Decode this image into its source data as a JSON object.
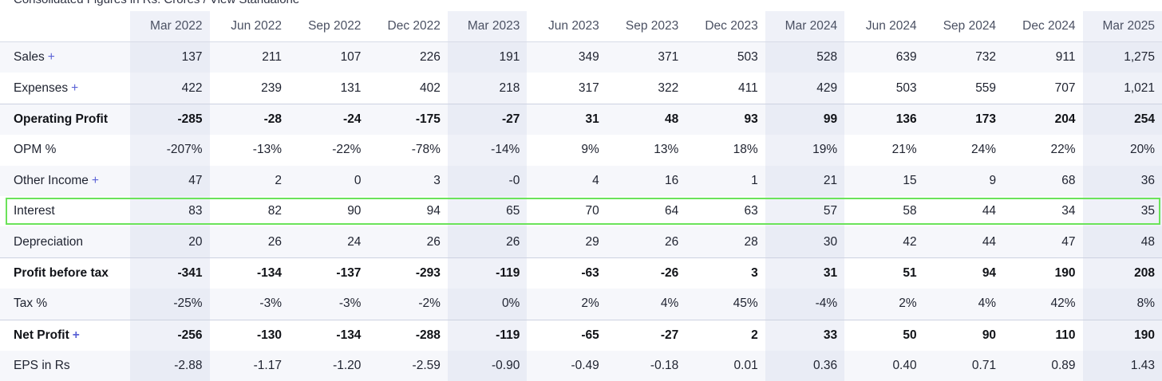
{
  "header_fragment": "Consolidated Figures in Rs. Crores / View Standalone",
  "periods": [
    "Mar 2022",
    "Jun 2022",
    "Sep 2022",
    "Dec 2022",
    "Mar 2023",
    "Jun 2023",
    "Sep 2023",
    "Dec 2023",
    "Mar 2024",
    "Jun 2024",
    "Sep 2024",
    "Dec 2024",
    "Mar 2025"
  ],
  "highlight_columns": [
    0,
    4,
    8,
    12
  ],
  "rows": [
    {
      "label": "Sales",
      "plus": true,
      "strong": false,
      "alt": true,
      "values": [
        "137",
        "211",
        "107",
        "226",
        "191",
        "349",
        "371",
        "503",
        "528",
        "639",
        "732",
        "911",
        "1,275"
      ]
    },
    {
      "label": "Expenses",
      "plus": true,
      "strong": false,
      "alt": false,
      "values": [
        "422",
        "239",
        "131",
        "402",
        "218",
        "317",
        "322",
        "411",
        "429",
        "503",
        "559",
        "707",
        "1,021"
      ]
    },
    {
      "label": "Operating Profit",
      "plus": false,
      "strong": true,
      "alt": true,
      "values": [
        "-285",
        "-28",
        "-24",
        "-175",
        "-27",
        "31",
        "48",
        "93",
        "99",
        "136",
        "173",
        "204",
        "254"
      ]
    },
    {
      "label": "OPM %",
      "plus": false,
      "strong": false,
      "alt": false,
      "values": [
        "-207%",
        "-13%",
        "-22%",
        "-78%",
        "-14%",
        "9%",
        "13%",
        "18%",
        "19%",
        "21%",
        "24%",
        "22%",
        "20%"
      ]
    },
    {
      "label": "Other Income",
      "plus": true,
      "strong": false,
      "alt": true,
      "values": [
        "47",
        "2",
        "0",
        "3",
        "-0",
        "4",
        "16",
        "1",
        "21",
        "15",
        "9",
        "68",
        "36"
      ]
    },
    {
      "label": "Interest",
      "plus": false,
      "strong": false,
      "alt": false,
      "selected": true,
      "values": [
        "83",
        "82",
        "90",
        "94",
        "65",
        "70",
        "64",
        "63",
        "57",
        "58",
        "44",
        "34",
        "35"
      ]
    },
    {
      "label": "Depreciation",
      "plus": false,
      "strong": false,
      "alt": true,
      "values": [
        "20",
        "26",
        "24",
        "26",
        "26",
        "29",
        "26",
        "28",
        "30",
        "42",
        "44",
        "47",
        "48"
      ]
    },
    {
      "label": "Profit before tax",
      "plus": false,
      "strong": true,
      "alt": false,
      "values": [
        "-341",
        "-134",
        "-137",
        "-293",
        "-119",
        "-63",
        "-26",
        "3",
        "31",
        "51",
        "94",
        "190",
        "208"
      ]
    },
    {
      "label": "Tax %",
      "plus": false,
      "strong": false,
      "alt": true,
      "values": [
        "-25%",
        "-3%",
        "-3%",
        "-2%",
        "0%",
        "2%",
        "4%",
        "45%",
        "-4%",
        "2%",
        "4%",
        "42%",
        "8%"
      ]
    },
    {
      "label": "Net Profit",
      "plus": true,
      "strong": true,
      "alt": false,
      "values": [
        "-256",
        "-130",
        "-134",
        "-288",
        "-119",
        "-65",
        "-27",
        "2",
        "33",
        "50",
        "90",
        "110",
        "190"
      ]
    },
    {
      "label": "EPS in Rs",
      "plus": false,
      "strong": false,
      "alt": true,
      "values": [
        "-2.88",
        "-1.17",
        "-1.20",
        "-2.59",
        "-0.90",
        "-0.49",
        "-0.18",
        "0.01",
        "0.36",
        "0.40",
        "0.71",
        "0.89",
        "1.43"
      ]
    }
  ],
  "plus_glyph": "+",
  "colors": {
    "accent": "#5b63d6",
    "highlight_border": "#6be35a",
    "header_bg": "#eff1f8"
  }
}
